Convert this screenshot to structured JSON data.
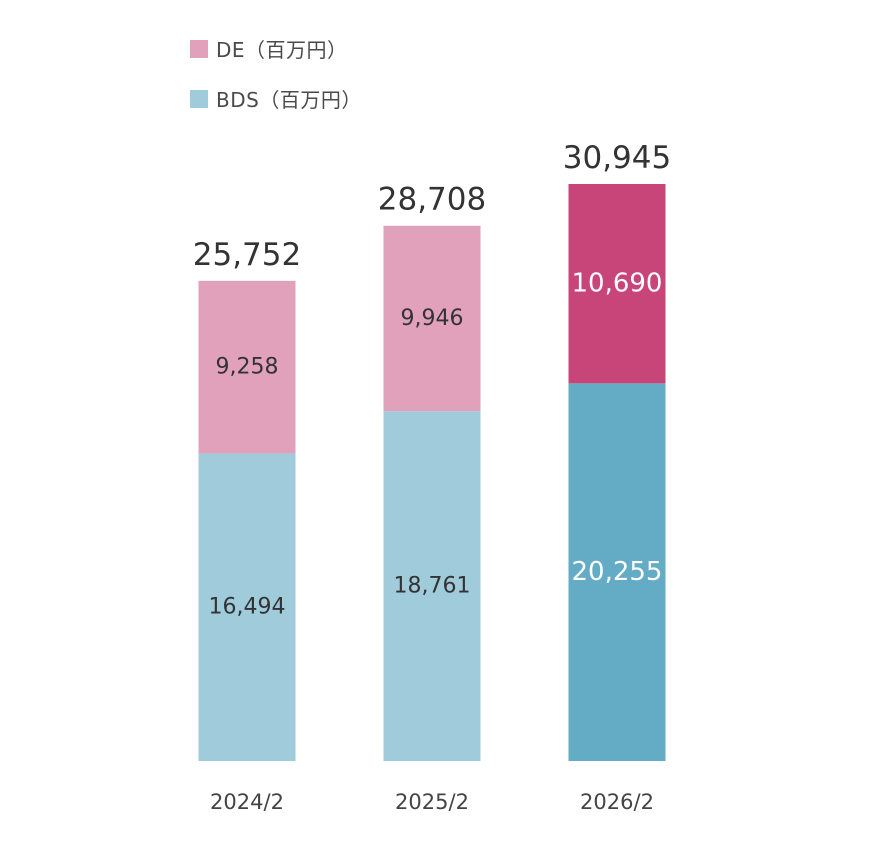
{
  "chart_data": {
    "type": "bar",
    "stacked": true,
    "categories": [
      "2024/2",
      "2025/2",
      "2026/2"
    ],
    "series": [
      {
        "name": "BDS（百万円）",
        "values": [
          16494,
          18761,
          20255
        ],
        "value_labels": [
          "16,494",
          "18,761",
          "20,255"
        ],
        "colors": [
          "#a0cbdb",
          "#a0cbdb",
          "#64abc5"
        ],
        "label_colors": [
          "#333333",
          "#333333",
          "#ffffff"
        ]
      },
      {
        "name": "DE（百万円）",
        "values": [
          9258,
          9946,
          10690
        ],
        "value_labels": [
          "9,258",
          "9,946",
          "10,690"
        ],
        "colors": [
          "#e2a1bb",
          "#e2a1bb",
          "#c8457a"
        ],
        "label_colors": [
          "#333333",
          "#333333",
          "#ffffff"
        ]
      }
    ],
    "totals": [
      25752,
      28708,
      30945
    ],
    "total_labels": [
      "25,752",
      "28,708",
      "30,945"
    ],
    "legend": {
      "placement": "top-left",
      "order": [
        "DE（百万円）",
        "BDS（百万円）"
      ],
      "swatch_colors": [
        "#e2a1bb",
        "#a0cbdb"
      ]
    },
    "title": "",
    "xlabel": "",
    "ylabel": "",
    "grid": false,
    "y_axis_visible": false,
    "ylim": [
      0,
      31000
    ]
  }
}
